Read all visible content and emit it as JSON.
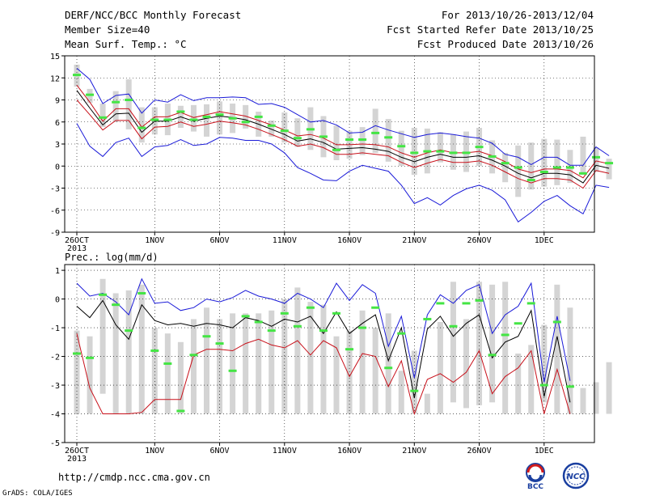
{
  "header": {
    "title": "DERF/NCC/BCC Monthly Forecast",
    "member_size": "Member Size=40",
    "variable": "Mean Surf. Temp.: °C",
    "period": "For 2013/10/26-2013/12/04",
    "start": "Fcst Started Refer Date 2013/10/25",
    "produced": "Fcst Produced Date 2013/10/26"
  },
  "footer": {
    "url": "http://cmdp.ncc.cma.gov.cn",
    "grads": "GrADS: COLA/IGES",
    "logo_bcc": "BCC",
    "logo_ncc": "NCC"
  },
  "colors": {
    "frame": "#000000",
    "bar": "#d4d4d4",
    "marker": "#44e544",
    "max_line": "#1a1ad8",
    "min_line": "#1a1ad8",
    "upper_line": "#c8101a",
    "lower_line": "#c8101a",
    "mean_line": "#000000"
  },
  "chart_data": [
    {
      "type": "line",
      "ylabel": "",
      "ylim": [
        -9,
        15
      ],
      "yticks": [
        -9,
        -6,
        -3,
        0,
        3,
        6,
        9,
        12,
        15
      ],
      "x_ticks": [
        {
          "day": 1,
          "label": "26OCT",
          "sub": "2013"
        },
        {
          "day": 7,
          "label": "1NOV"
        },
        {
          "day": 12,
          "label": "6NOV"
        },
        {
          "day": 17,
          "label": "11NOV"
        },
        {
          "day": 22,
          "label": "16NOV"
        },
        {
          "day": 27,
          "label": "21NOV"
        },
        {
          "day": 32,
          "label": "26NOV"
        },
        {
          "day": 37,
          "label": "1DEC"
        }
      ],
      "grid": true,
      "bars": {
        "low": [
          10.8,
          8.6,
          5.3,
          6.0,
          5.0,
          3.2,
          4.3,
          4.2,
          5.2,
          4.7,
          4.0,
          4.3,
          4.5,
          5.1,
          4.0,
          4.0,
          3.2,
          2.6,
          2.2,
          1.2,
          0.8,
          1.0,
          1.5,
          1.8,
          0.6,
          0.0,
          -1.2,
          -1.0,
          0.5,
          -0.5,
          -0.8,
          0.0,
          -1.0,
          -2.2,
          -4.2,
          -3.2,
          -2.8,
          -2.6,
          -2.3,
          -1.2,
          -0.8,
          -1.8
        ],
        "high": [
          13.8,
          10.5,
          8.5,
          10.2,
          11.8,
          8.0,
          8.0,
          8.5,
          8.2,
          8.3,
          8.4,
          8.8,
          8.5,
          8.3,
          7.4,
          6.2,
          7.3,
          6.5,
          8.0,
          6.8,
          5.5,
          4.8,
          5.3,
          7.8,
          6.4,
          4.8,
          5.2,
          5.1,
          4.6,
          4.3,
          4.7,
          5.2,
          3.5,
          1.8,
          2.8,
          3.2,
          3.7,
          3.6,
          2.2,
          4.0,
          2.5,
          1.0
        ]
      },
      "markers": [
        12.4,
        9.7,
        6.6,
        8.7,
        9.0,
        5.2,
        6.3,
        6.3,
        7.4,
        6.3,
        6.7,
        7.0,
        6.5,
        6.0,
        6.7,
        5.5,
        4.8,
        3.8,
        5.0,
        4.0,
        2.2,
        3.6,
        3.6,
        4.5,
        3.9,
        2.7,
        1.8,
        2.0,
        2.0,
        1.8,
        1.8,
        2.6,
        1.3,
        0.4,
        -0.2,
        -1.9,
        -0.8,
        -0.2,
        -0.2,
        -1.0,
        1.2,
        0.4
      ],
      "series": [
        {
          "role": "max",
          "values": [
            13.3,
            11.8,
            8.5,
            9.6,
            9.8,
            7.2,
            9.0,
            8.7,
            9.7,
            8.9,
            9.3,
            9.3,
            9.4,
            9.3,
            8.4,
            8.5,
            8.0,
            7.0,
            6.0,
            6.2,
            5.6,
            4.5,
            4.6,
            5.5,
            4.9,
            4.4,
            3.9,
            4.3,
            4.5,
            4.3,
            4.0,
            3.8,
            3.1,
            1.6,
            1.2,
            0.2,
            1.2,
            1.2,
            0.1,
            0.1,
            2.6,
            1.4
          ]
        },
        {
          "role": "upper",
          "values": [
            11.0,
            8.7,
            6.1,
            7.8,
            7.8,
            5.3,
            6.7,
            6.7,
            7.3,
            6.6,
            7.0,
            7.4,
            7.1,
            6.8,
            6.2,
            5.6,
            4.9,
            4.1,
            4.3,
            3.8,
            2.9,
            2.9,
            3.0,
            2.9,
            2.6,
            1.8,
            1.2,
            1.8,
            2.2,
            1.8,
            1.8,
            2.0,
            1.4,
            0.6,
            -0.4,
            -0.9,
            -0.4,
            -0.4,
            -0.6,
            -1.6,
            0.7,
            0.3
          ]
        },
        {
          "role": "mean",
          "values": [
            10.3,
            7.9,
            5.6,
            7.1,
            7.2,
            4.6,
            6.1,
            6.1,
            6.7,
            6.1,
            6.5,
            6.8,
            6.6,
            6.3,
            5.7,
            5.0,
            4.3,
            3.4,
            3.7,
            3.2,
            2.3,
            2.4,
            2.5,
            2.3,
            2.0,
            1.2,
            0.6,
            1.2,
            1.6,
            1.2,
            1.2,
            1.4,
            0.8,
            0.0,
            -1.0,
            -1.6,
            -1.0,
            -1.0,
            -1.2,
            -2.3,
            0.1,
            -0.3
          ]
        },
        {
          "role": "lower",
          "values": [
            9.0,
            7.0,
            4.9,
            6.2,
            6.2,
            3.7,
            5.3,
            5.4,
            6.0,
            5.4,
            5.7,
            6.1,
            5.9,
            5.6,
            5.0,
            4.3,
            3.6,
            2.7,
            3.0,
            2.5,
            1.6,
            1.6,
            1.8,
            1.6,
            1.4,
            0.5,
            -0.2,
            0.4,
            0.9,
            0.5,
            0.5,
            0.7,
            0.1,
            -0.8,
            -1.7,
            -2.3,
            -1.7,
            -1.7,
            -1.9,
            -3.0,
            -0.6,
            -1.0
          ]
        },
        {
          "role": "min",
          "values": [
            5.8,
            2.7,
            1.3,
            3.2,
            3.8,
            1.3,
            2.6,
            2.8,
            3.6,
            2.8,
            3.0,
            3.9,
            3.8,
            3.5,
            3.5,
            3.0,
            1.8,
            -0.2,
            -1.0,
            -1.9,
            -2.0,
            -0.7,
            0.1,
            -0.3,
            -0.7,
            -2.6,
            -5.1,
            -4.3,
            -5.3,
            -4.0,
            -3.1,
            -2.6,
            -3.3,
            -4.6,
            -7.6,
            -6.3,
            -4.8,
            -4.0,
            -5.4,
            -6.5,
            -2.6,
            -2.9
          ]
        }
      ]
    },
    {
      "type": "line",
      "title": "Prec.: log(mm/d)",
      "ylim": [
        -5,
        1.2
      ],
      "yticks": [
        -5,
        -4,
        -3,
        -2,
        -1,
        0,
        1
      ],
      "x_ticks": [
        {
          "day": 1,
          "label": "26OCT",
          "sub": "2013"
        },
        {
          "day": 7,
          "label": "1NOV"
        },
        {
          "day": 12,
          "label": "6NOV"
        },
        {
          "day": 17,
          "label": "11NOV"
        },
        {
          "day": 22,
          "label": "16NOV"
        },
        {
          "day": 27,
          "label": "21NOV"
        },
        {
          "day": 32,
          "label": "26NOV"
        },
        {
          "day": 37,
          "label": "1DEC"
        }
      ],
      "grid": true,
      "bars": {
        "low": [
          -4.0,
          -4.0,
          -3.3,
          -4.0,
          -4.0,
          -4.0,
          -4.0,
          -4.0,
          -4.0,
          -4.0,
          -4.0,
          -4.0,
          -4.0,
          -4.0,
          -4.0,
          -4.0,
          -4.0,
          -4.0,
          -4.0,
          -4.0,
          -4.0,
          -4.0,
          -4.0,
          -4.0,
          -4.0,
          -4.0,
          -4.0,
          -4.0,
          -4.0,
          -3.6,
          -3.8,
          -3.7,
          -3.6,
          -4.0,
          -4.0,
          -4.0,
          -3.6,
          -4.0,
          -4.0,
          -4.0,
          -4.0,
          -4.0
        ],
        "high": [
          -1.1,
          -1.3,
          0.7,
          0.2,
          0.3,
          0.5,
          -1.0,
          -1.2,
          -1.5,
          -0.7,
          -0.3,
          -0.7,
          -0.5,
          -0.5,
          -0.5,
          -0.4,
          0.0,
          0.4,
          -0.1,
          -0.2,
          -1.3,
          -1.1,
          -0.4,
          -1.0,
          -0.5,
          -2.5,
          -1.8,
          -3.3,
          -0.8,
          0.6,
          -0.7,
          0.6,
          0.5,
          0.6,
          -1.9,
          -1.6,
          -0.9,
          0.5,
          -0.3,
          -3.1,
          -2.9,
          -2.2
        ]
      },
      "markers": [
        -1.9,
        -2.05,
        0.15,
        -0.2,
        -1.1,
        0.2,
        -1.8,
        -2.25,
        -3.9,
        -1.95,
        -1.3,
        -1.55,
        -2.5,
        -0.6,
        -0.8,
        -1.1,
        -0.5,
        -0.95,
        -0.3,
        -1.1,
        -0.5,
        -1.75,
        -1.0,
        -0.3,
        -2.4,
        -1.2,
        -3.2,
        -0.7,
        -0.15,
        -0.95,
        -0.15,
        -0.05,
        -1.95,
        -1.25,
        -0.85,
        -0.15,
        -3.0,
        -0.8,
        -3.05
      ],
      "marker_days": [
        1,
        2,
        3,
        4,
        5,
        6,
        7,
        8,
        9,
        10,
        11,
        12,
        13,
        14,
        15,
        16,
        17,
        18,
        19,
        20,
        21,
        22,
        23,
        24,
        25,
        26,
        27,
        28,
        29,
        30,
        31,
        32,
        33,
        34,
        35,
        36,
        37,
        38,
        39
      ],
      "series": [
        {
          "role": "max",
          "values": [
            0.55,
            0.1,
            0.2,
            -0.1,
            -0.55,
            0.7,
            -0.15,
            -0.1,
            -0.4,
            -0.3,
            0.0,
            -0.1,
            0.05,
            0.3,
            0.1,
            0.0,
            -0.15,
            0.2,
            0.0,
            -0.3,
            0.55,
            -0.05,
            0.5,
            0.2,
            -1.65,
            -0.6,
            -2.75,
            -0.55,
            0.15,
            -0.15,
            0.3,
            0.5,
            -1.2,
            -0.55,
            -0.25,
            0.55,
            -2.9,
            -0.6,
            -2.85
          ]
        },
        {
          "role": "mean",
          "values": [
            -0.25,
            -0.65,
            -0.05,
            -0.9,
            -1.4,
            -0.2,
            -0.75,
            -0.9,
            -0.85,
            -0.95,
            -0.85,
            -0.9,
            -1.0,
            -0.65,
            -0.75,
            -0.95,
            -0.7,
            -0.8,
            -0.6,
            -1.2,
            -0.45,
            -1.2,
            -0.85,
            -0.55,
            -2.15,
            -1.0,
            -3.45,
            -1.05,
            -0.6,
            -1.3,
            -0.85,
            -0.55,
            -2.05,
            -1.5,
            -1.3,
            -0.4,
            -3.4,
            -1.3,
            -3.6
          ]
        },
        {
          "role": "min",
          "values": [
            -1.2,
            -3.1,
            -4.0,
            -4.0,
            -4.0,
            -3.95,
            -3.5,
            -3.5,
            -3.5,
            -1.95,
            -1.75,
            -1.75,
            -1.8,
            -1.55,
            -1.4,
            -1.6,
            -1.7,
            -1.45,
            -1.95,
            -1.45,
            -1.7,
            -2.7,
            -1.9,
            -2.0,
            -3.05,
            -2.15,
            -4.0,
            -2.8,
            -2.6,
            -2.9,
            -2.55,
            -1.8,
            -3.3,
            -2.7,
            -2.4,
            -1.8,
            -4.0,
            -2.45,
            -4.0
          ]
        }
      ]
    }
  ]
}
